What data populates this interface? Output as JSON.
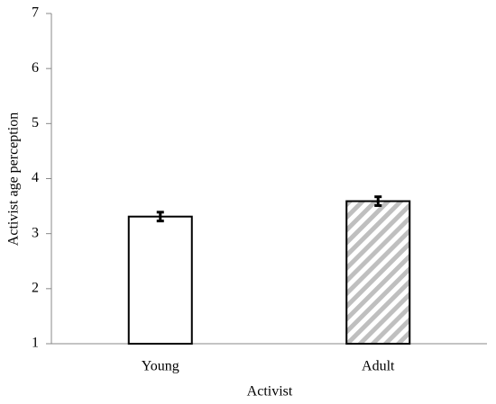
{
  "chart_data": {
    "type": "bar",
    "x_label": "Activist",
    "y_label": "Activist age perception",
    "categories": [
      "Young",
      "Adult"
    ],
    "values": [
      3.31,
      3.59
    ],
    "errors": [
      0.08,
      0.08
    ],
    "colors": [
      "#ffffff",
      "#bfbfbf"
    ],
    "hatch": [
      false,
      true
    ],
    "ylim": [
      1,
      7
    ],
    "yticks": [
      1,
      2,
      3,
      4,
      5,
      6,
      7
    ],
    "grid": false
  }
}
